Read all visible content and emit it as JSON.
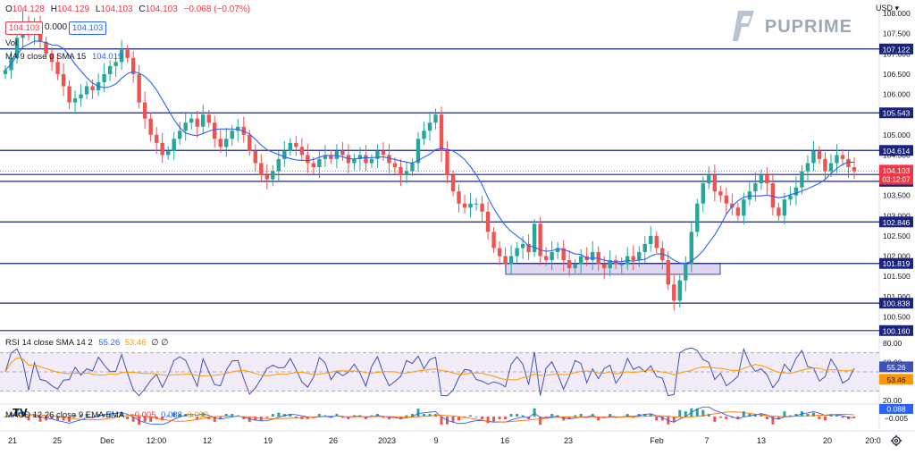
{
  "header": {
    "ohlc": {
      "o_label": "O",
      "o": "104.128",
      "h_label": "H",
      "h": "104.129",
      "l_label": "L",
      "l": "104.103",
      "c_label": "C",
      "c": "104.103",
      "change": "−0.068 (−0.07%)"
    },
    "sell_price": "104.103",
    "spread": "0.000",
    "buy_price": "104.103",
    "vol_label": "Vol",
    "ma_label": "MA 9 close 0 SMA 15",
    "ma_value": "104.019",
    "rsi_label": "RSI 14 close SMA 14 2",
    "rsi_value": "55.26",
    "rsi_sma_value": "53.46",
    "rsi_extra": "∅ ∅",
    "macd_label": "MACD 12 26 close 9 EMA EMA",
    "macd_v1": "−0.005",
    "macd_v2": "0.088",
    "macd_v3": "0.092",
    "currency": "USD",
    "brand": "PUPRIME"
  },
  "colors": {
    "up": "#26a69a",
    "down": "#ef5350",
    "level": "#1a237e",
    "ma": "#2962ff",
    "rsi": "#3f51b5",
    "rsi_sma": "#ff9800",
    "zone": "#d1c4e9",
    "price_tag": "#f23645"
  },
  "price_axis_ticks": [
    "108.000",
    "107.500",
    "107.000",
    "106.500",
    "106.000",
    "105.500",
    "105.000",
    "104.500",
    "104.000",
    "103.500",
    "103.000",
    "102.500",
    "102.000",
    "101.500",
    "101.000",
    "100.500"
  ],
  "level_labels": [
    "107.122",
    "105.543",
    "104.614",
    "104.019",
    "103.850",
    "102.846",
    "101.819",
    "100.838",
    "100.160"
  ],
  "current_price": {
    "price": "104.103",
    "countdown": "03:12:07"
  },
  "rsi_axis_ticks": [
    "80.00",
    "60.00",
    "40.00",
    "20.00"
  ],
  "rsi_tags": {
    "rsi": "55.26",
    "sma": "53.46"
  },
  "macd_tags": {
    "a": "0.088",
    "b": "−0.005"
  },
  "time_axis": [
    "21",
    "25",
    "Dec",
    "12:00",
    "12",
    "19",
    "26",
    "2023",
    "9",
    "16",
    "23",
    "Feb",
    "7",
    "13",
    "20",
    "20:0"
  ],
  "chart_data": {
    "type": "candlestick",
    "price_range": [
      100.2,
      108.2
    ],
    "levels": [
      107.122,
      105.543,
      104.614,
      104.019,
      103.85,
      102.846,
      101.819,
      100.838,
      100.16
    ],
    "zone": [
      101.55,
      101.82
    ],
    "rsi_range": [
      20,
      80
    ],
    "rsi_bands": [
      30,
      70
    ],
    "rsi_mid": 50,
    "macd_range": [
      -0.6,
      0.6
    ],
    "closes": [
      106.6,
      106.9,
      107.4,
      107.8,
      107.5,
      107.7,
      107.3,
      107.0,
      106.8,
      106.5,
      106.2,
      105.8,
      105.9,
      106.0,
      106.2,
      106.1,
      106.3,
      106.5,
      106.7,
      106.8,
      107.1,
      106.9,
      106.5,
      105.8,
      105.4,
      105.0,
      104.8,
      104.5,
      104.6,
      104.9,
      105.1,
      105.3,
      105.4,
      105.2,
      105.5,
      105.3,
      104.9,
      104.7,
      104.9,
      105.1,
      105.2,
      105.0,
      104.6,
      104.3,
      104.0,
      103.9,
      104.1,
      104.4,
      104.6,
      104.8,
      104.7,
      104.5,
      104.3,
      104.2,
      104.4,
      104.5,
      104.4,
      104.6,
      104.5,
      104.3,
      104.4,
      104.5,
      104.3,
      104.4,
      104.6,
      104.5,
      104.3,
      104.2,
      104.0,
      104.1,
      104.3,
      104.9,
      105.1,
      105.3,
      105.5,
      104.6,
      104.0,
      103.6,
      103.3,
      103.2,
      103.3,
      103.3,
      103.1,
      102.6,
      102.2,
      102.0,
      101.8,
      102.0,
      102.2,
      102.3,
      102.1,
      102.8,
      102.0,
      101.9,
      102.1,
      102.2,
      101.9,
      101.7,
      101.8,
      102.0,
      101.9,
      102.1,
      101.8,
      101.7,
      101.9,
      101.8,
      101.8,
      102.0,
      101.9,
      102.1,
      102.3,
      102.5,
      102.2,
      101.9,
      101.3,
      100.9,
      101.4,
      101.8,
      102.6,
      103.3,
      103.8,
      104.0,
      103.6,
      103.5,
      103.3,
      103.2,
      103.0,
      103.4,
      103.6,
      103.8,
      104.0,
      103.8,
      103.2,
      103.0,
      103.4,
      103.5,
      103.7,
      104.1,
      104.3,
      104.6,
      104.4,
      104.1,
      104.3,
      104.5,
      104.4,
      104.2,
      104.1
    ]
  }
}
